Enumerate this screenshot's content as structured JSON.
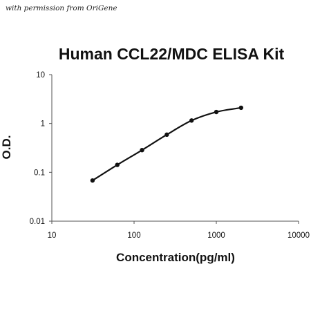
{
  "credit": "with permission from OriGene",
  "chart_data": {
    "type": "scatter",
    "title": "Human CCL22/MDC ELISA Kit",
    "xlabel": "Concentration(pg/ml)",
    "ylabel": "O.D.",
    "xscale": "log",
    "yscale": "log",
    "xlim": [
      10,
      10000
    ],
    "ylim": [
      0.01,
      10
    ],
    "xticks": [
      "10",
      "100",
      "1000",
      "10000"
    ],
    "yticks": [
      "0.01",
      "0.1",
      "1",
      "10"
    ],
    "grid": false,
    "legend": "none",
    "series": [
      {
        "points": [
          {
            "x": 31.25,
            "y": 0.068
          },
          {
            "x": 62.5,
            "y": 0.142
          },
          {
            "x": 125,
            "y": 0.285
          },
          {
            "x": 250,
            "y": 0.59
          },
          {
            "x": 500,
            "y": 1.15
          },
          {
            "x": 1000,
            "y": 1.72
          },
          {
            "x": 2000,
            "y": 2.1
          }
        ],
        "trendline": "smooth curve"
      }
    ],
    "colors": {
      "points": "#111111",
      "curve": "#111111",
      "axes": "#555555"
    }
  }
}
